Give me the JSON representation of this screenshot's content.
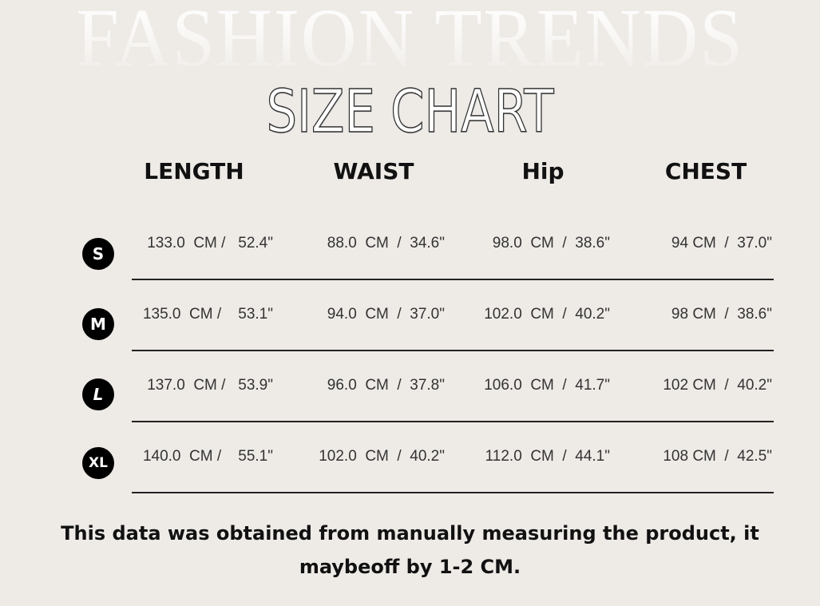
{
  "background_title": "FASHION TRENDS",
  "title": "SIZE CHART",
  "columns": [
    "LENGTH",
    "WAIST",
    "Hip",
    "CHEST"
  ],
  "rows": [
    {
      "size": "S",
      "values": [
        "133.0  CM /   52.4\"",
        "88.0  CM  /  34.6\"",
        "98.0  CM  /  38.6\"",
        "94 CM  /  37.0\""
      ]
    },
    {
      "size": "M",
      "values": [
        "135.0  CM /    53.1\"",
        "94.0  CM  /  37.0\"",
        "102.0  CM  /  40.2\"",
        "98 CM  /  38.6\""
      ]
    },
    {
      "size": "L",
      "values": [
        "137.0  CM /   53.9\"",
        "96.0  CM  /  37.8\"",
        "106.0  CM  /  41.7\"",
        "102 CM  /  40.2\""
      ]
    },
    {
      "size": "XL",
      "values": [
        "140.0  CM /    55.1\"",
        "102.0  CM  /  40.2\"",
        "112.0  CM  /  44.1\"",
        "108 CM  /  42.5\""
      ]
    }
  ],
  "note": {
    "line1": "This data was obtained from manually measuring the product, it",
    "line2": "maybeoff by 1-2 CM."
  }
}
